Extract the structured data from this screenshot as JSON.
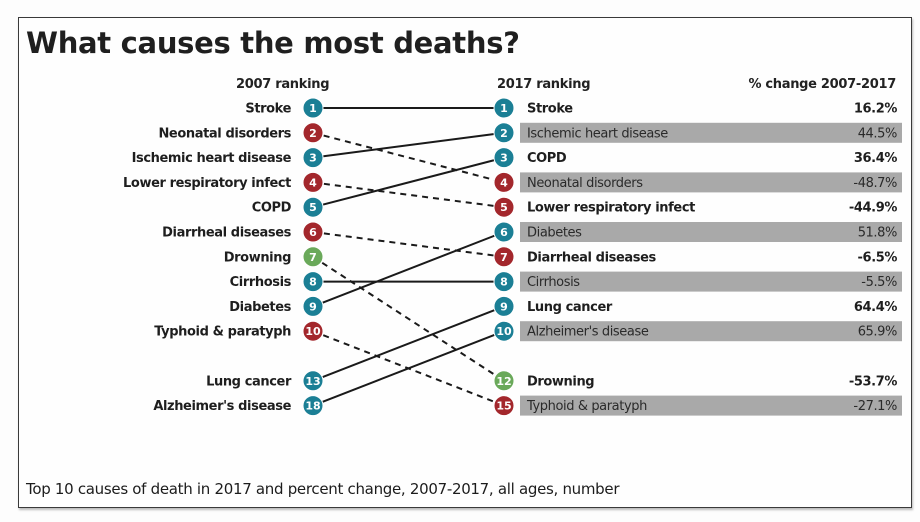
{
  "chart_data": {
    "type": "slope",
    "title": "What causes the most deaths?",
    "subtitle": "Top 10 causes of death in 2017 and percent change, 2007-2017, all ages, number",
    "left_header": "2007 ranking",
    "right_header": "2017 ranking",
    "change_header": "% change 2007-2017",
    "colors": {
      "chronic": "#1b7f95",
      "communicable": "#a3272c",
      "injury": "#6aa95a",
      "line": "#1a1a1a",
      "bar": "#a9a9a9"
    },
    "left": [
      {
        "rank": 1,
        "label": "Stroke",
        "group": "chronic"
      },
      {
        "rank": 2,
        "label": "Neonatal disorders",
        "group": "communicable"
      },
      {
        "rank": 3,
        "label": "Ischemic heart disease",
        "group": "chronic"
      },
      {
        "rank": 4,
        "label": "Lower respiratory infect",
        "group": "communicable"
      },
      {
        "rank": 5,
        "label": "COPD",
        "group": "chronic"
      },
      {
        "rank": 6,
        "label": "Diarrheal diseases",
        "group": "communicable"
      },
      {
        "rank": 7,
        "label": "Drowning",
        "group": "injury"
      },
      {
        "rank": 8,
        "label": "Cirrhosis",
        "group": "chronic"
      },
      {
        "rank": 9,
        "label": "Diabetes",
        "group": "chronic"
      },
      {
        "rank": 10,
        "label": "Typhoid & paratyph",
        "group": "communicable"
      },
      {
        "rank": 13,
        "label": "Lung cancer",
        "group": "chronic"
      },
      {
        "rank": 18,
        "label": "Alzheimer's disease",
        "group": "chronic"
      }
    ],
    "right": [
      {
        "rank": 1,
        "label": "Stroke",
        "change": "16.2%",
        "group": "chronic"
      },
      {
        "rank": 2,
        "label": "Ischemic heart disease",
        "change": "44.5%",
        "group": "chronic"
      },
      {
        "rank": 3,
        "label": "COPD",
        "change": "36.4%",
        "group": "chronic"
      },
      {
        "rank": 4,
        "label": "Neonatal disorders",
        "change": "-48.7%",
        "group": "communicable"
      },
      {
        "rank": 5,
        "label": "Lower respiratory infect",
        "change": "-44.9%",
        "group": "communicable"
      },
      {
        "rank": 6,
        "label": "Diabetes",
        "change": "51.8%",
        "group": "chronic"
      },
      {
        "rank": 7,
        "label": "Diarrheal diseases",
        "change": "-6.5%",
        "group": "communicable"
      },
      {
        "rank": 8,
        "label": "Cirrhosis",
        "change": "-5.5%",
        "group": "chronic"
      },
      {
        "rank": 9,
        "label": "Lung cancer",
        "change": "64.4%",
        "group": "chronic"
      },
      {
        "rank": 10,
        "label": "Alzheimer's disease",
        "change": "65.9%",
        "group": "chronic"
      },
      {
        "rank": 12,
        "label": "Drowning",
        "change": "-53.7%",
        "group": "injury"
      },
      {
        "rank": 15,
        "label": "Typhoid & paratyph",
        "change": "-27.1%",
        "group": "communicable"
      }
    ],
    "links": [
      {
        "from": 1,
        "to": 1,
        "style": "solid"
      },
      {
        "from": 2,
        "to": 4,
        "style": "dashed"
      },
      {
        "from": 3,
        "to": 2,
        "style": "solid"
      },
      {
        "from": 4,
        "to": 5,
        "style": "dashed"
      },
      {
        "from": 5,
        "to": 3,
        "style": "solid"
      },
      {
        "from": 6,
        "to": 7,
        "style": "dashed"
      },
      {
        "from": 7,
        "to": 12,
        "style": "dashed"
      },
      {
        "from": 8,
        "to": 8,
        "style": "solid"
      },
      {
        "from": 9,
        "to": 6,
        "style": "solid"
      },
      {
        "from": 10,
        "to": 15,
        "style": "dashed"
      },
      {
        "from": 13,
        "to": 9,
        "style": "solid"
      },
      {
        "from": 18,
        "to": 10,
        "style": "solid"
      }
    ]
  }
}
